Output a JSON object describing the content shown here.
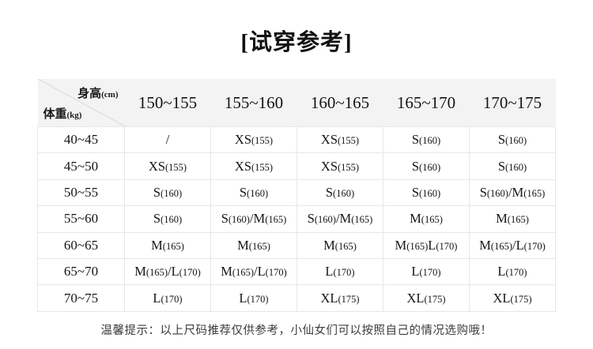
{
  "page": {
    "title": "[试穿参考]",
    "note": "温馨提示：以上尺码推荐仅供参考，小仙女们可以按照自己的情况选购哦！"
  },
  "chart_data": {
    "type": "table",
    "title": "[试穿参考]",
    "corner": {
      "top_label": "身高",
      "top_unit": "(cm)",
      "bottom_label": "体重",
      "bottom_unit": "(kg)"
    },
    "column_axis": "身高(cm)",
    "row_axis": "体重(kg)",
    "columns": [
      "150~155",
      "155~160",
      "160~165",
      "165~170",
      "170~175"
    ],
    "rows": [
      {
        "weight": "40~45",
        "cells": [
          "/",
          "XS(155)",
          "XS(155)",
          "S(160)",
          "S(160)"
        ]
      },
      {
        "weight": "45~50",
        "cells": [
          "XS(155)",
          "XS(155)",
          "XS(155)",
          "S(160)",
          "S(160)"
        ]
      },
      {
        "weight": "50~55",
        "cells": [
          "S(160)",
          "S(160)",
          "S(160)",
          "S(160)",
          "S(160)/M(165)"
        ]
      },
      {
        "weight": "55~60",
        "cells": [
          "S(160)",
          "S(160)/M(165)",
          "S(160)/M(165)",
          "M(165)",
          "M(165)"
        ]
      },
      {
        "weight": "60~65",
        "cells": [
          "M(165)",
          "M(165)",
          "M(165)",
          "M(165)L(170)",
          "M(165)/L(170)"
        ]
      },
      {
        "weight": "65~70",
        "cells": [
          "M(165)/L(170)",
          "M(165)/L(170)",
          "L(170)",
          "L(170)",
          "L(170)"
        ]
      },
      {
        "weight": "70~75",
        "cells": [
          "L(170)",
          "L(170)",
          "XL(175)",
          "XL(175)",
          "XL(175)"
        ]
      }
    ]
  },
  "colors": {
    "header_bg": "#f3f3f4",
    "cell_border": "#e7e7e8",
    "text": "#141414",
    "note_text": "#3c3c3c",
    "background": "#ffffff"
  }
}
